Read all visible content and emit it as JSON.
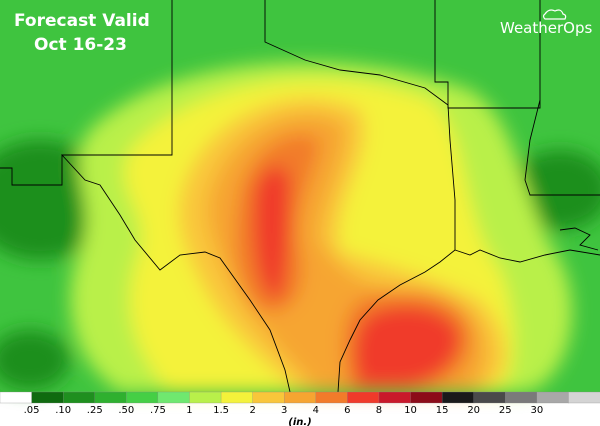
{
  "header": {
    "title_line1": "Forecast Valid",
    "title_line2": "Oct 16-23",
    "brand": "WeatherOps"
  },
  "legend": {
    "unit": "(in.)",
    "colors": [
      "#ffffff",
      "#0f6a0f",
      "#1f8f1f",
      "#2fb02f",
      "#45cf45",
      "#6fe86f",
      "#b9f04a",
      "#f4f23a",
      "#f9c63a",
      "#f6a531",
      "#f27b2a",
      "#f03a2a",
      "#c9192a",
      "#8c0c18",
      "#1a1a1a",
      "#4a4a4a",
      "#7a7a7a",
      "#a8a8a8",
      "#d4d4d4"
    ],
    "labels": [
      ".05",
      ".10",
      ".25",
      ".50",
      ".75",
      "1",
      "1.5",
      "2",
      "3",
      "4",
      "6",
      "8",
      "10",
      "15",
      "20",
      "25",
      "30"
    ]
  }
}
